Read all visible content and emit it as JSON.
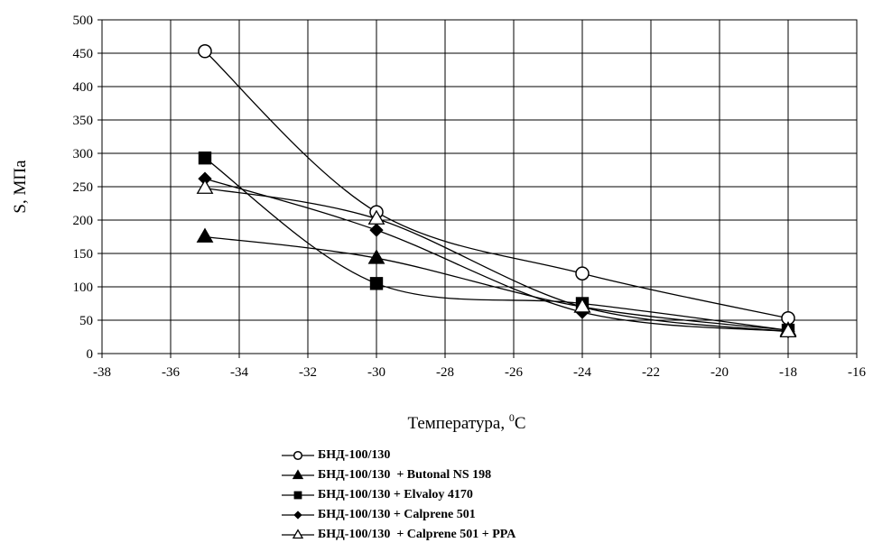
{
  "chart_data": {
    "type": "line",
    "xlabel": "Температура, ",
    "xlabel_sup": "0",
    "xlabel_unit": "С",
    "ylabel": "S, МПа",
    "xlim": [
      -38,
      -16
    ],
    "ylim": [
      0,
      500
    ],
    "xticks": [
      "-38",
      "-36",
      "-34",
      "-32",
      "-30",
      "-28",
      "-26",
      "-24",
      "-22",
      "-20",
      "-18",
      "-16"
    ],
    "yticks": [
      "0",
      "50",
      "100",
      "150",
      "200",
      "250",
      "300",
      "350",
      "400",
      "450",
      "500"
    ],
    "grid": true,
    "legend_position": "bottom",
    "x": [
      -35,
      -30,
      -24,
      -18
    ],
    "series": [
      {
        "name": "БНД-100/130",
        "marker": "circle-open",
        "values": [
          453,
          212,
          120,
          53
        ]
      },
      {
        "name": "БНД-100/130  + Butonal NS 198",
        "marker": "triangle-filled",
        "values": [
          175,
          143,
          70,
          35
        ]
      },
      {
        "name": "БНД-100/130 + Elvaloy 4170",
        "marker": "square-filled",
        "values": [
          293,
          105,
          75,
          35
        ]
      },
      {
        "name": "БНД-100/130 + Calprene 501",
        "marker": "diamond-filled",
        "values": [
          262,
          185,
          62,
          33
        ]
      },
      {
        "name": "БНД-100/130  + Calprene 501 + PPA",
        "marker": "triangle-open",
        "values": [
          248,
          202,
          70,
          33
        ]
      }
    ],
    "colors": {
      "line": "#000000",
      "grid": "#000000",
      "open_fill": "#ffffff"
    }
  }
}
